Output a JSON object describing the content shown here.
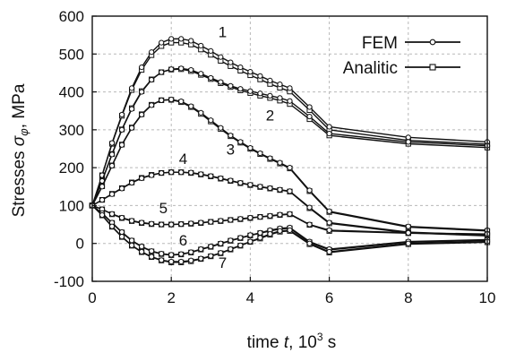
{
  "chart_data": {
    "type": "line",
    "xlabel": {
      "prefix": "time ",
      "var": "t",
      "mid": ", 10",
      "sup": "3",
      "suffix": " s"
    },
    "ylabel": {
      "prefix": "Stresses ",
      "var": "σ",
      "sub": "φ",
      "suffix": ", MPa"
    },
    "xlim": [
      0,
      10
    ],
    "ylim": [
      -100,
      600
    ],
    "xticks": [
      0,
      2,
      4,
      6,
      8,
      10
    ],
    "yticks": [
      -100,
      0,
      100,
      200,
      300,
      400,
      500,
      600
    ],
    "grid": true,
    "legend_position": "top-right",
    "legend": [
      {
        "label": "FEM",
        "marker": "circle"
      },
      {
        "label": "Analitic",
        "marker": "square"
      }
    ],
    "x": [
      0,
      0.25,
      0.5,
      0.75,
      1.0,
      1.25,
      1.5,
      1.75,
      2.0,
      2.25,
      2.5,
      2.75,
      3.0,
      3.25,
      3.5,
      3.75,
      4.0,
      4.25,
      4.5,
      4.75,
      5.0,
      5.5,
      6,
      8,
      10
    ],
    "series": [
      {
        "name": "1",
        "fem": [
          100,
          180,
          265,
          340,
          410,
          465,
          505,
          530,
          540,
          540,
          535,
          522,
          508,
          492,
          478,
          465,
          453,
          442,
          430,
          420,
          410,
          360,
          308,
          280,
          268
        ],
        "analytic": [
          100,
          180,
          263,
          337,
          405,
          458,
          497,
          521,
          530,
          530,
          525,
          512,
          498,
          482,
          468,
          456,
          444,
          433,
          421,
          411,
          401,
          352,
          300,
          272,
          262
        ]
      },
      {
        "name": "2",
        "fem": [
          100,
          165,
          235,
          300,
          355,
          400,
          432,
          452,
          460,
          462,
          458,
          448,
          437,
          426,
          416,
          408,
          402,
          396,
          390,
          384,
          376,
          335,
          290,
          268,
          258
        ],
        "analytic": [
          100,
          166,
          236,
          301,
          357,
          402,
          433,
          452,
          459,
          460,
          455,
          445,
          434,
          423,
          413,
          404,
          397,
          390,
          384,
          377,
          368,
          328,
          285,
          263,
          253
        ]
      },
      {
        "name": "3",
        "fem": [
          100,
          150,
          205,
          260,
          305,
          340,
          365,
          378,
          380,
          375,
          362,
          345,
          325,
          305,
          285,
          268,
          252,
          238,
          225,
          213,
          200,
          140,
          85,
          45,
          35
        ],
        "analytic": [
          100,
          151,
          206,
          261,
          306,
          341,
          366,
          378,
          379,
          373,
          360,
          342,
          322,
          302,
          283,
          266,
          250,
          236,
          223,
          211,
          198,
          138,
          83,
          43,
          33
        ]
      },
      {
        "name": "4",
        "fem": [
          100,
          115,
          130,
          145,
          160,
          172,
          180,
          186,
          188,
          188,
          187,
          183,
          178,
          172,
          166,
          160,
          155,
          150,
          146,
          142,
          138,
          95,
          55,
          30,
          22
        ],
        "analytic": [
          100,
          115,
          131,
          146,
          161,
          173,
          181,
          186,
          188,
          188,
          186,
          182,
          177,
          171,
          165,
          159,
          154,
          149,
          145,
          141,
          137,
          93,
          53,
          28,
          20
        ]
      },
      {
        "name": "5",
        "fem": [
          100,
          90,
          78,
          68,
          60,
          55,
          52,
          50,
          50,
          51,
          53,
          55,
          57,
          60,
          62,
          65,
          68,
          70,
          73,
          76,
          78,
          50,
          35,
          28,
          25
        ],
        "analytic": [
          100,
          90,
          77,
          67,
          59,
          54,
          51,
          50,
          50,
          51,
          52,
          54,
          57,
          59,
          62,
          64,
          67,
          70,
          72,
          75,
          77,
          49,
          33,
          27,
          23
        ]
      },
      {
        "name": "6",
        "fem": [
          100,
          80,
          55,
          30,
          8,
          -8,
          -20,
          -27,
          -30,
          -28,
          -23,
          -15,
          -8,
          0,
          8,
          15,
          22,
          28,
          35,
          40,
          42,
          5,
          -15,
          5,
          10
        ],
        "analytic": [
          100,
          79,
          54,
          29,
          7,
          -9,
          -21,
          -28,
          -31,
          -29,
          -24,
          -16,
          -9,
          -1,
          7,
          14,
          21,
          27,
          33,
          38,
          40,
          3,
          -17,
          3,
          8
        ]
      },
      {
        "name": "7",
        "fem": [
          100,
          75,
          45,
          18,
          -5,
          -22,
          -35,
          -44,
          -48,
          -48,
          -45,
          -40,
          -33,
          -25,
          -15,
          -5,
          5,
          15,
          25,
          33,
          35,
          0,
          -22,
          0,
          5
        ],
        "analytic": [
          100,
          74,
          44,
          17,
          -6,
          -23,
          -36,
          -45,
          -50,
          -50,
          -47,
          -41,
          -34,
          -26,
          -16,
          -6,
          4,
          13,
          23,
          31,
          33,
          -2,
          -24,
          -2,
          3
        ]
      }
    ]
  }
}
